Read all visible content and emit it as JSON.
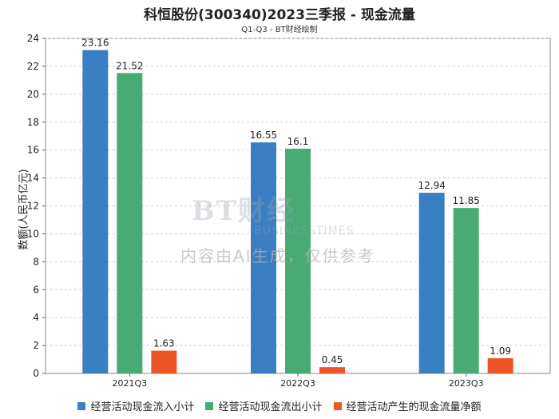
{
  "chart_data": {
    "type": "bar",
    "title": "科恒股份(300340)2023三季报 - 现金流量",
    "subtitle": "Q1-Q3 - BT财经绘制",
    "ylabel": "数额(人民币亿元)",
    "ylim": [
      0,
      24
    ],
    "yticks": [
      0,
      2,
      4,
      6,
      8,
      10,
      12,
      14,
      16,
      18,
      20,
      22,
      24
    ],
    "categories": [
      "2021Q3",
      "2022Q3",
      "2023Q3"
    ],
    "series": [
      {
        "name": "经营活动现金流入小计",
        "color": "#3a7fc1",
        "values": [
          23.16,
          16.55,
          12.94
        ],
        "labels": [
          "23.16",
          "16.55",
          "12.94"
        ]
      },
      {
        "name": "经营活动现金流出小计",
        "color": "#47ab73",
        "values": [
          21.52,
          16.1,
          11.85
        ],
        "labels": [
          "21.52",
          "16.1",
          "11.85"
        ]
      },
      {
        "name": "经营活动产生的现金流量净额",
        "color": "#ee5526",
        "values": [
          1.63,
          0.45,
          1.09
        ],
        "labels": [
          "1.63",
          "0.45",
          "1.09"
        ]
      }
    ],
    "grid": true,
    "legend_position": "bottom"
  },
  "watermark": {
    "logo": "BT财经",
    "sub": "BUSINESSTIMES",
    "text": "内容由AI生成，仅供参考"
  }
}
